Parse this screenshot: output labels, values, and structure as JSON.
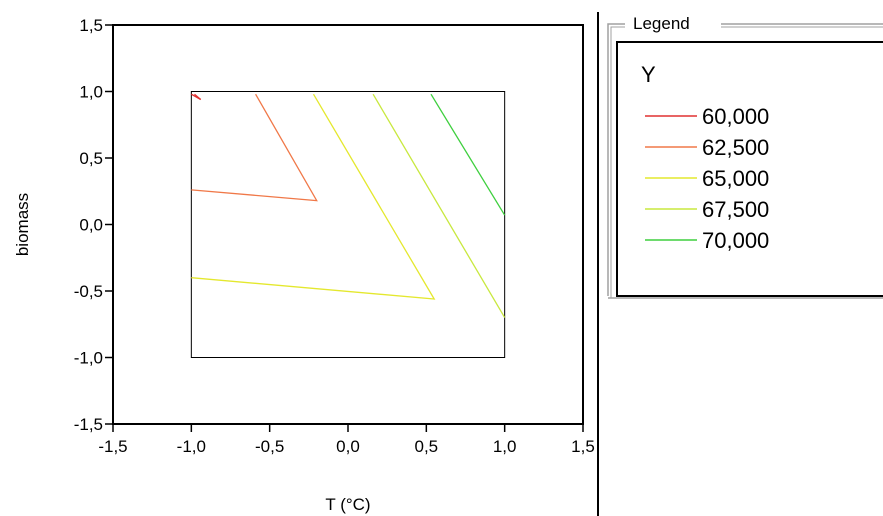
{
  "chart_data": {
    "type": "contour",
    "xlabel": "T (°C)",
    "ylabel": "biomass",
    "xlim": [
      -1.5,
      1.5
    ],
    "ylim": [
      -1.5,
      1.5
    ],
    "xticks": [
      "-1,5",
      "-1,0",
      "-0,5",
      "0,0",
      "0,5",
      "1,0",
      "1,5"
    ],
    "yticks": [
      "-1,5",
      "-1,0",
      "-0,5",
      "0,0",
      "0,5",
      "1,0",
      "1,5"
    ],
    "data_region": {
      "x": [
        -1.0,
        1.0
      ],
      "y": [
        -1.0,
        1.0
      ]
    },
    "legend": {
      "title": "Legend",
      "variable": "Y",
      "placement": "right"
    },
    "series": [
      {
        "name": "60,000",
        "color": "#e03030",
        "lines": [
          [
            [
              -1.0,
              0.98
            ],
            [
              -0.94,
              0.94
            ]
          ],
          [
            [
              -0.98,
              0.98
            ],
            [
              -0.94,
              0.94
            ]
          ]
        ]
      },
      {
        "name": "62,500",
        "color": "#f07848",
        "lines": [
          [
            [
              -0.59,
              0.98
            ],
            [
              -0.2,
              0.18
            ],
            [
              -1.0,
              0.26
            ]
          ]
        ]
      },
      {
        "name": "65,000",
        "color": "#e4e82e",
        "lines": [
          [
            [
              -0.22,
              0.98
            ],
            [
              0.55,
              -0.56
            ],
            [
              -1.0,
              -0.4
            ]
          ]
        ]
      },
      {
        "name": "67,500",
        "color": "#c8e83e",
        "lines": [
          [
            [
              0.16,
              0.98
            ],
            [
              1.0,
              -0.7
            ]
          ]
        ]
      },
      {
        "name": "70,000",
        "color": "#3ecf3e",
        "lines": [
          [
            [
              0.53,
              0.98
            ],
            [
              1.0,
              0.07
            ]
          ]
        ]
      }
    ]
  }
}
